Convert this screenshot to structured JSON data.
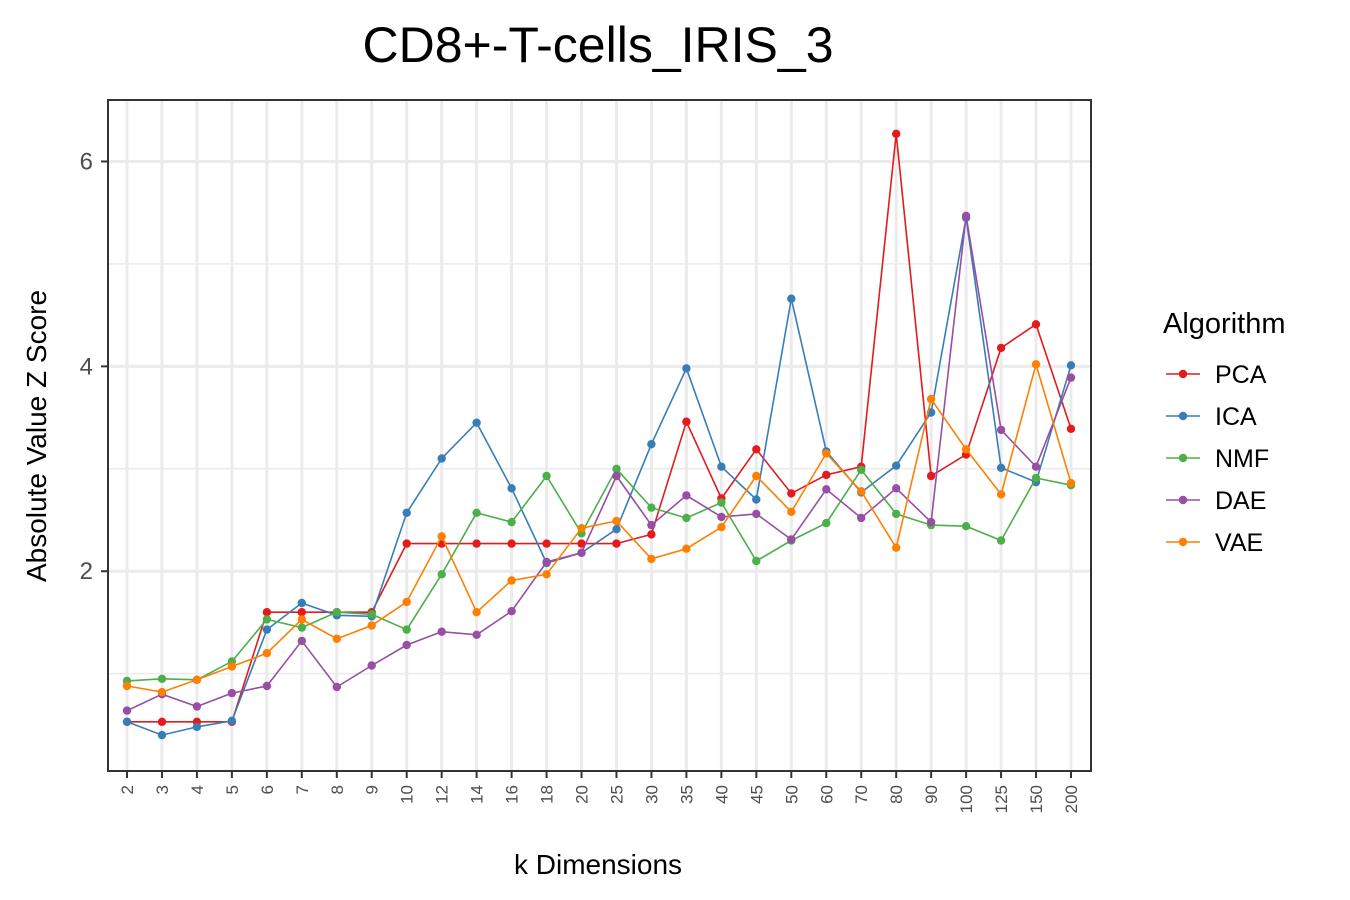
{
  "chart_data": {
    "type": "line",
    "title": "CD8+-T-cells_IRIS_3",
    "xlabel": "k Dimensions",
    "ylabel": "Absolute Value Z Score",
    "categories": [
      "2",
      "3",
      "4",
      "5",
      "6",
      "7",
      "8",
      "9",
      "10",
      "12",
      "14",
      "16",
      "18",
      "20",
      "25",
      "30",
      "35",
      "40",
      "45",
      "50",
      "60",
      "70",
      "80",
      "90",
      "100",
      "125",
      "150",
      "200"
    ],
    "ylim": [
      0.05,
      6.6
    ],
    "yticks": [
      2,
      4,
      6
    ],
    "grid": true,
    "legend": {
      "title": "Algorithm",
      "position": "right"
    },
    "series": [
      {
        "name": "PCA",
        "color": "#e41a1c",
        "values": [
          0.53,
          0.53,
          0.53,
          0.53,
          1.6,
          1.6,
          1.6,
          1.6,
          2.27,
          2.27,
          2.27,
          2.27,
          2.27,
          2.27,
          2.27,
          2.36,
          3.46,
          2.71,
          3.19,
          2.76,
          2.94,
          3.02,
          6.27,
          2.93,
          3.14,
          4.18,
          4.41,
          3.39
        ]
      },
      {
        "name": "ICA",
        "color": "#377eb8",
        "values": [
          0.53,
          0.4,
          0.48,
          0.54,
          1.43,
          1.69,
          1.57,
          1.56,
          2.57,
          3.1,
          3.45,
          2.81,
          2.08,
          2.18,
          2.41,
          3.24,
          3.98,
          3.02,
          2.7,
          4.66,
          3.17,
          2.77,
          3.03,
          3.55,
          5.45,
          3.01,
          2.87,
          4.01
        ]
      },
      {
        "name": "NMF",
        "color": "#4daf4a",
        "values": [
          0.93,
          0.95,
          0.94,
          1.12,
          1.53,
          1.45,
          1.6,
          1.58,
          1.43,
          1.97,
          2.57,
          2.48,
          2.93,
          2.37,
          3.0,
          2.62,
          2.52,
          2.67,
          2.1,
          2.3,
          2.47,
          2.99,
          2.56,
          2.45,
          2.44,
          2.3,
          2.91,
          2.84
        ]
      },
      {
        "name": "DAE",
        "color": "#984ea3",
        "values": [
          0.64,
          0.8,
          0.68,
          0.81,
          0.88,
          1.32,
          0.87,
          1.08,
          1.28,
          1.41,
          1.38,
          1.61,
          2.09,
          2.18,
          2.93,
          2.45,
          2.74,
          2.53,
          2.56,
          2.31,
          2.8,
          2.52,
          2.81,
          2.48,
          5.47,
          3.38,
          3.02,
          3.89
        ]
      },
      {
        "name": "VAE",
        "color": "#ff7f00",
        "values": [
          0.88,
          0.82,
          0.94,
          1.07,
          1.2,
          1.53,
          1.34,
          1.47,
          1.7,
          2.34,
          1.6,
          1.91,
          1.97,
          2.42,
          2.49,
          2.12,
          2.22,
          2.43,
          2.93,
          2.58,
          3.15,
          2.78,
          2.23,
          3.68,
          3.19,
          2.75,
          4.02,
          2.86
        ]
      }
    ]
  }
}
